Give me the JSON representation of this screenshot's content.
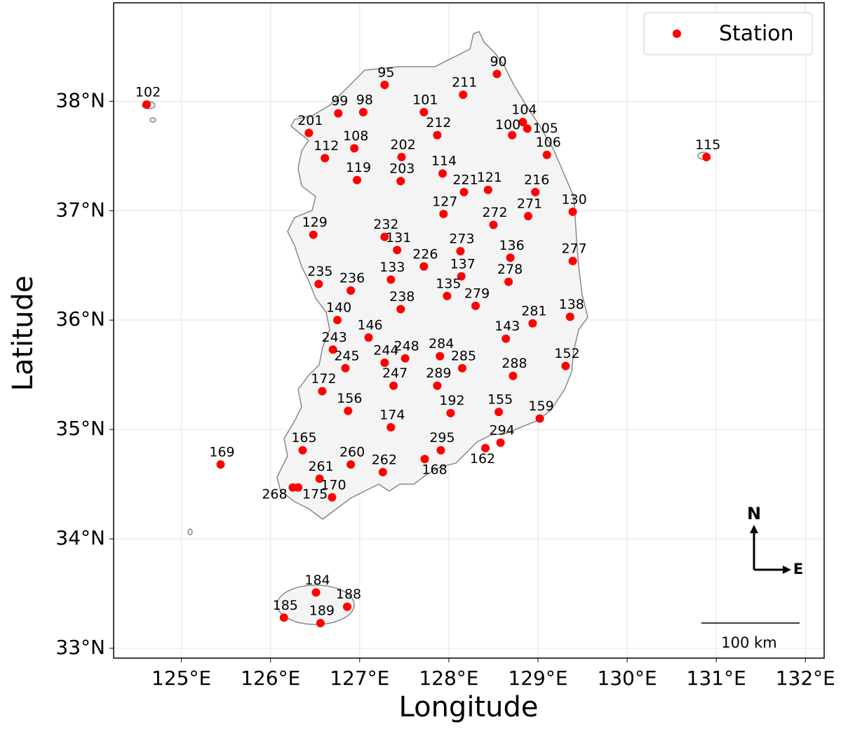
{
  "chart_data": {
    "type": "scatter",
    "xlabel": "Longitude",
    "ylabel": "Latitude",
    "xlim": [
      124.24,
      132.21
    ],
    "ylim": [
      32.91,
      38.9
    ],
    "xticks": [
      {
        "value": 125,
        "label": "125°E"
      },
      {
        "value": 126,
        "label": "126°E"
      },
      {
        "value": 127,
        "label": "127°E"
      },
      {
        "value": 128,
        "label": "128°E"
      },
      {
        "value": 129,
        "label": "129°E"
      },
      {
        "value": 130,
        "label": "130°E"
      },
      {
        "value": 131,
        "label": "131°E"
      },
      {
        "value": 132,
        "label": "132°E"
      }
    ],
    "yticks": [
      {
        "value": 33,
        "label": "33°N"
      },
      {
        "value": 34,
        "label": "34°N"
      },
      {
        "value": 35,
        "label": "35°N"
      },
      {
        "value": 36,
        "label": "36°N"
      },
      {
        "value": 37,
        "label": "37°N"
      },
      {
        "value": 38,
        "label": "38°N"
      }
    ],
    "grid": true,
    "legend": "upper right",
    "x": [
      124.61,
      128.54,
      127.28,
      128.16,
      126.76,
      127.04,
      127.72,
      128.83,
      128.88,
      128.71,
      126.43,
      127.87,
      126.94,
      127.47,
      129.1,
      130.89,
      126.61,
      127.93,
      126.97,
      127.46,
      128.17,
      128.44,
      128.97,
      129.39,
      127.94,
      128.89,
      128.5,
      126.48,
      127.28,
      127.42,
      128.13,
      128.69,
      129.39,
      127.72,
      128.14,
      127.35,
      128.67,
      126.54,
      126.9,
      127.98,
      128.3,
      127.46,
      129.36,
      126.75,
      128.94,
      127.1,
      128.64,
      126.7,
      127.9,
      127.51,
      127.28,
      129.31,
      128.15,
      126.84,
      128.72,
      127.87,
      127.38,
      126.58,
      126.87,
      128.56,
      128.02,
      129.02,
      127.35,
      128.58,
      128.41,
      127.91,
      126.36,
      125.44,
      126.9,
      127.73,
      127.26,
      126.55,
      126.25,
      126.31,
      126.69,
      126.51,
      126.86,
      126.15,
      126.56
    ],
    "series": [
      {
        "name": "Station",
        "color": "#ff0000",
        "values": [
          37.97,
          38.25,
          38.15,
          38.06,
          37.89,
          37.9,
          37.9,
          37.81,
          37.75,
          37.69,
          37.71,
          37.69,
          37.57,
          37.49,
          37.51,
          37.49,
          37.48,
          37.34,
          37.28,
          37.27,
          37.17,
          37.19,
          37.17,
          36.99,
          36.97,
          36.95,
          36.87,
          36.78,
          36.76,
          36.64,
          36.63,
          36.57,
          36.54,
          36.49,
          36.4,
          36.37,
          36.35,
          36.33,
          36.27,
          36.22,
          36.13,
          36.1,
          36.03,
          36.0,
          35.97,
          35.84,
          35.83,
          35.73,
          35.67,
          35.65,
          35.61,
          35.58,
          35.56,
          35.56,
          35.49,
          35.4,
          35.4,
          35.35,
          35.17,
          35.16,
          35.15,
          35.1,
          35.02,
          34.88,
          34.83,
          34.81,
          34.81,
          34.68,
          34.68,
          34.73,
          34.61,
          34.55,
          34.47,
          34.47,
          34.38,
          33.51,
          33.38,
          33.28,
          33.23
        ],
        "point_labels": [
          "102",
          "90",
          "95",
          "211",
          "99",
          "98",
          "101",
          "104",
          "105",
          "100",
          "201",
          "212",
          "108",
          "202",
          "106",
          "115",
          "112",
          "114",
          "119",
          "203",
          "221",
          "121",
          "216",
          "130",
          "127",
          "271",
          "272",
          "129",
          "232",
          "131",
          "273",
          "136",
          "277",
          "226",
          "137",
          "133",
          "278",
          "235",
          "236",
          "135",
          "279",
          "238",
          "138",
          "140",
          "281",
          "146",
          "143",
          "243",
          "284",
          "248",
          "244",
          "152",
          "285",
          "245",
          "288",
          "289",
          "247",
          "172",
          "156",
          "155",
          "192",
          "159",
          "174",
          "294",
          "162",
          "295",
          "165",
          "169",
          "260",
          "168",
          "262",
          "261",
          "268",
          "175",
          "170",
          "184",
          "188",
          "185",
          "189"
        ]
      }
    ],
    "annotations": {
      "scale_bar": "100 km",
      "north": "N",
      "east": "E"
    }
  }
}
